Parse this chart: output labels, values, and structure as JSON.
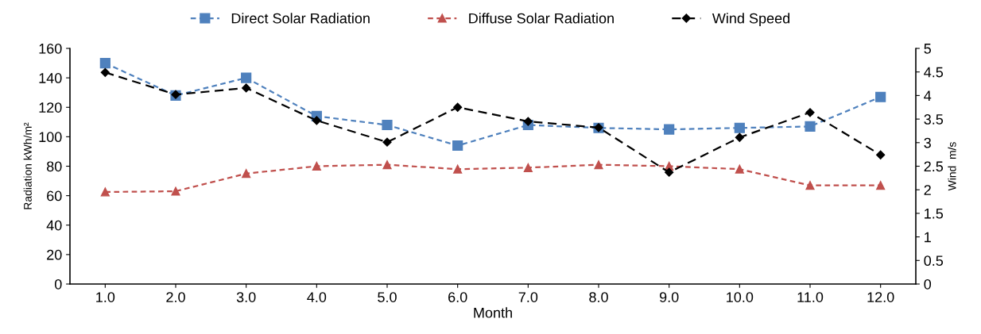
{
  "chart_data": {
    "type": "line",
    "xlabel": "Month",
    "ylabel": "Radiation kWh/m²",
    "y2label": "Wind  m/s",
    "categories": [
      "1.0",
      "2.0",
      "3.0",
      "4.0",
      "5.0",
      "6.0",
      "7.0",
      "8.0",
      "9.0",
      "10.0",
      "11.0",
      "12.0"
    ],
    "series": [
      {
        "name": "Direct Solar Radiation",
        "color": "#4f81bd",
        "marker": "square",
        "line_style": "dotted",
        "values": [
          150,
          128,
          140,
          114,
          108,
          94,
          108,
          106,
          105,
          106,
          107,
          127
        ]
      },
      {
        "name": "Diffuse Solar Radiation",
        "color": "#c0504d",
        "marker": "triangle",
        "line_style": "dotted",
        "values": [
          62.5,
          63,
          75,
          80,
          81,
          78,
          79,
          81,
          80,
          78,
          67,
          67
        ]
      },
      {
        "name": "Wind Speed",
        "color": "#000000",
        "marker": "diamond",
        "line_style": "dashed",
        "axis": "y2",
        "values": [
          4.49,
          4.02,
          4.16,
          3.47,
          3.01,
          3.75,
          3.45,
          3.32,
          2.37,
          3.11,
          3.64,
          2.74
        ]
      }
    ],
    "ylim": [
      0,
      160
    ],
    "yticks": [
      0,
      20,
      40,
      60,
      80,
      100,
      120,
      140,
      160
    ],
    "y2lim": [
      0,
      5
    ],
    "y2ticks": [
      0,
      0.5,
      1,
      1.5,
      2,
      2.5,
      3,
      3.5,
      4,
      4.5,
      5
    ],
    "grid": false,
    "legend": "top"
  }
}
